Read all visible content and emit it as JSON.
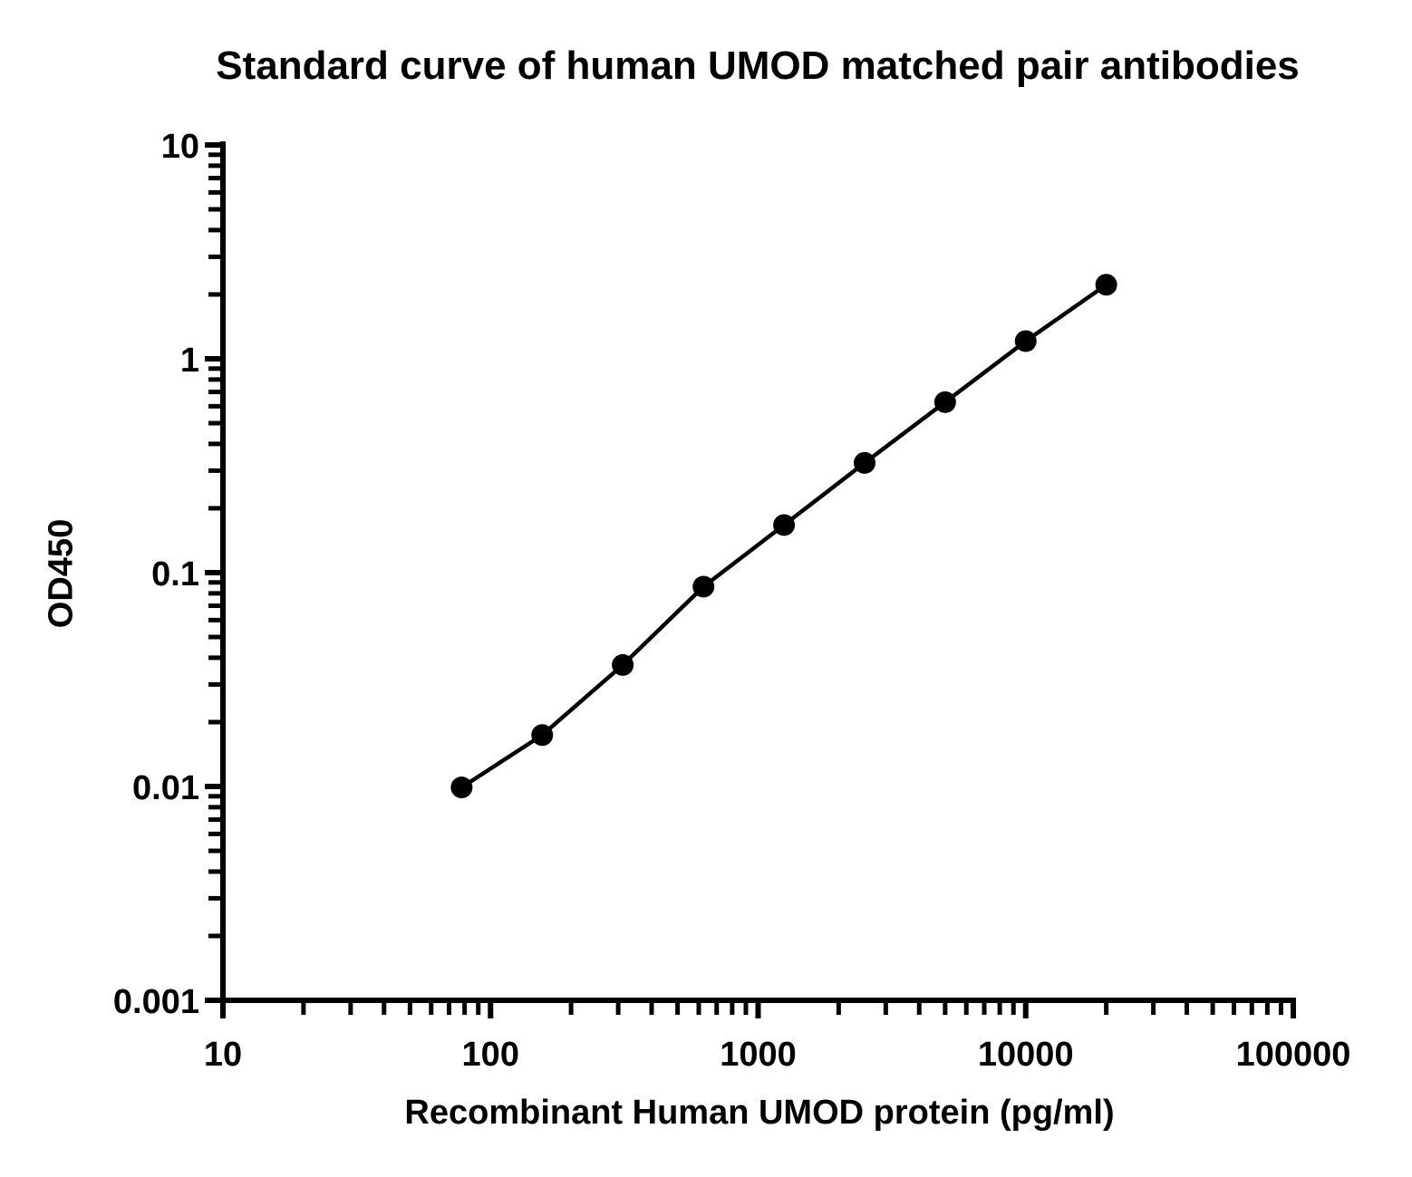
{
  "chart_data": {
    "type": "line",
    "title": "Standard curve of human UMOD matched pair antibodies",
    "xlabel": "Recombinant Human UMOD protein (pg/ml)",
    "ylabel": "OD450",
    "xscale": "log",
    "yscale": "log",
    "xlim": [
      10,
      100000
    ],
    "ylim": [
      0.001,
      10
    ],
    "x_ticks": [
      "10",
      "100",
      "1000",
      "10000",
      "100000"
    ],
    "y_ticks": [
      "0.001",
      "0.01",
      "0.1",
      "1",
      "10"
    ],
    "grid": false,
    "series": [
      {
        "marker": "circle",
        "color": "#000000",
        "points": [
          {
            "x": 78,
            "y": 0.0099
          },
          {
            "x": 156,
            "y": 0.0174
          },
          {
            "x": 312,
            "y": 0.037
          },
          {
            "x": 625,
            "y": 0.086
          },
          {
            "x": 1250,
            "y": 0.167
          },
          {
            "x": 2500,
            "y": 0.326
          },
          {
            "x": 5000,
            "y": 0.627
          },
          {
            "x": 10000,
            "y": 1.21
          },
          {
            "x": 20000,
            "y": 2.22
          }
        ]
      }
    ]
  }
}
